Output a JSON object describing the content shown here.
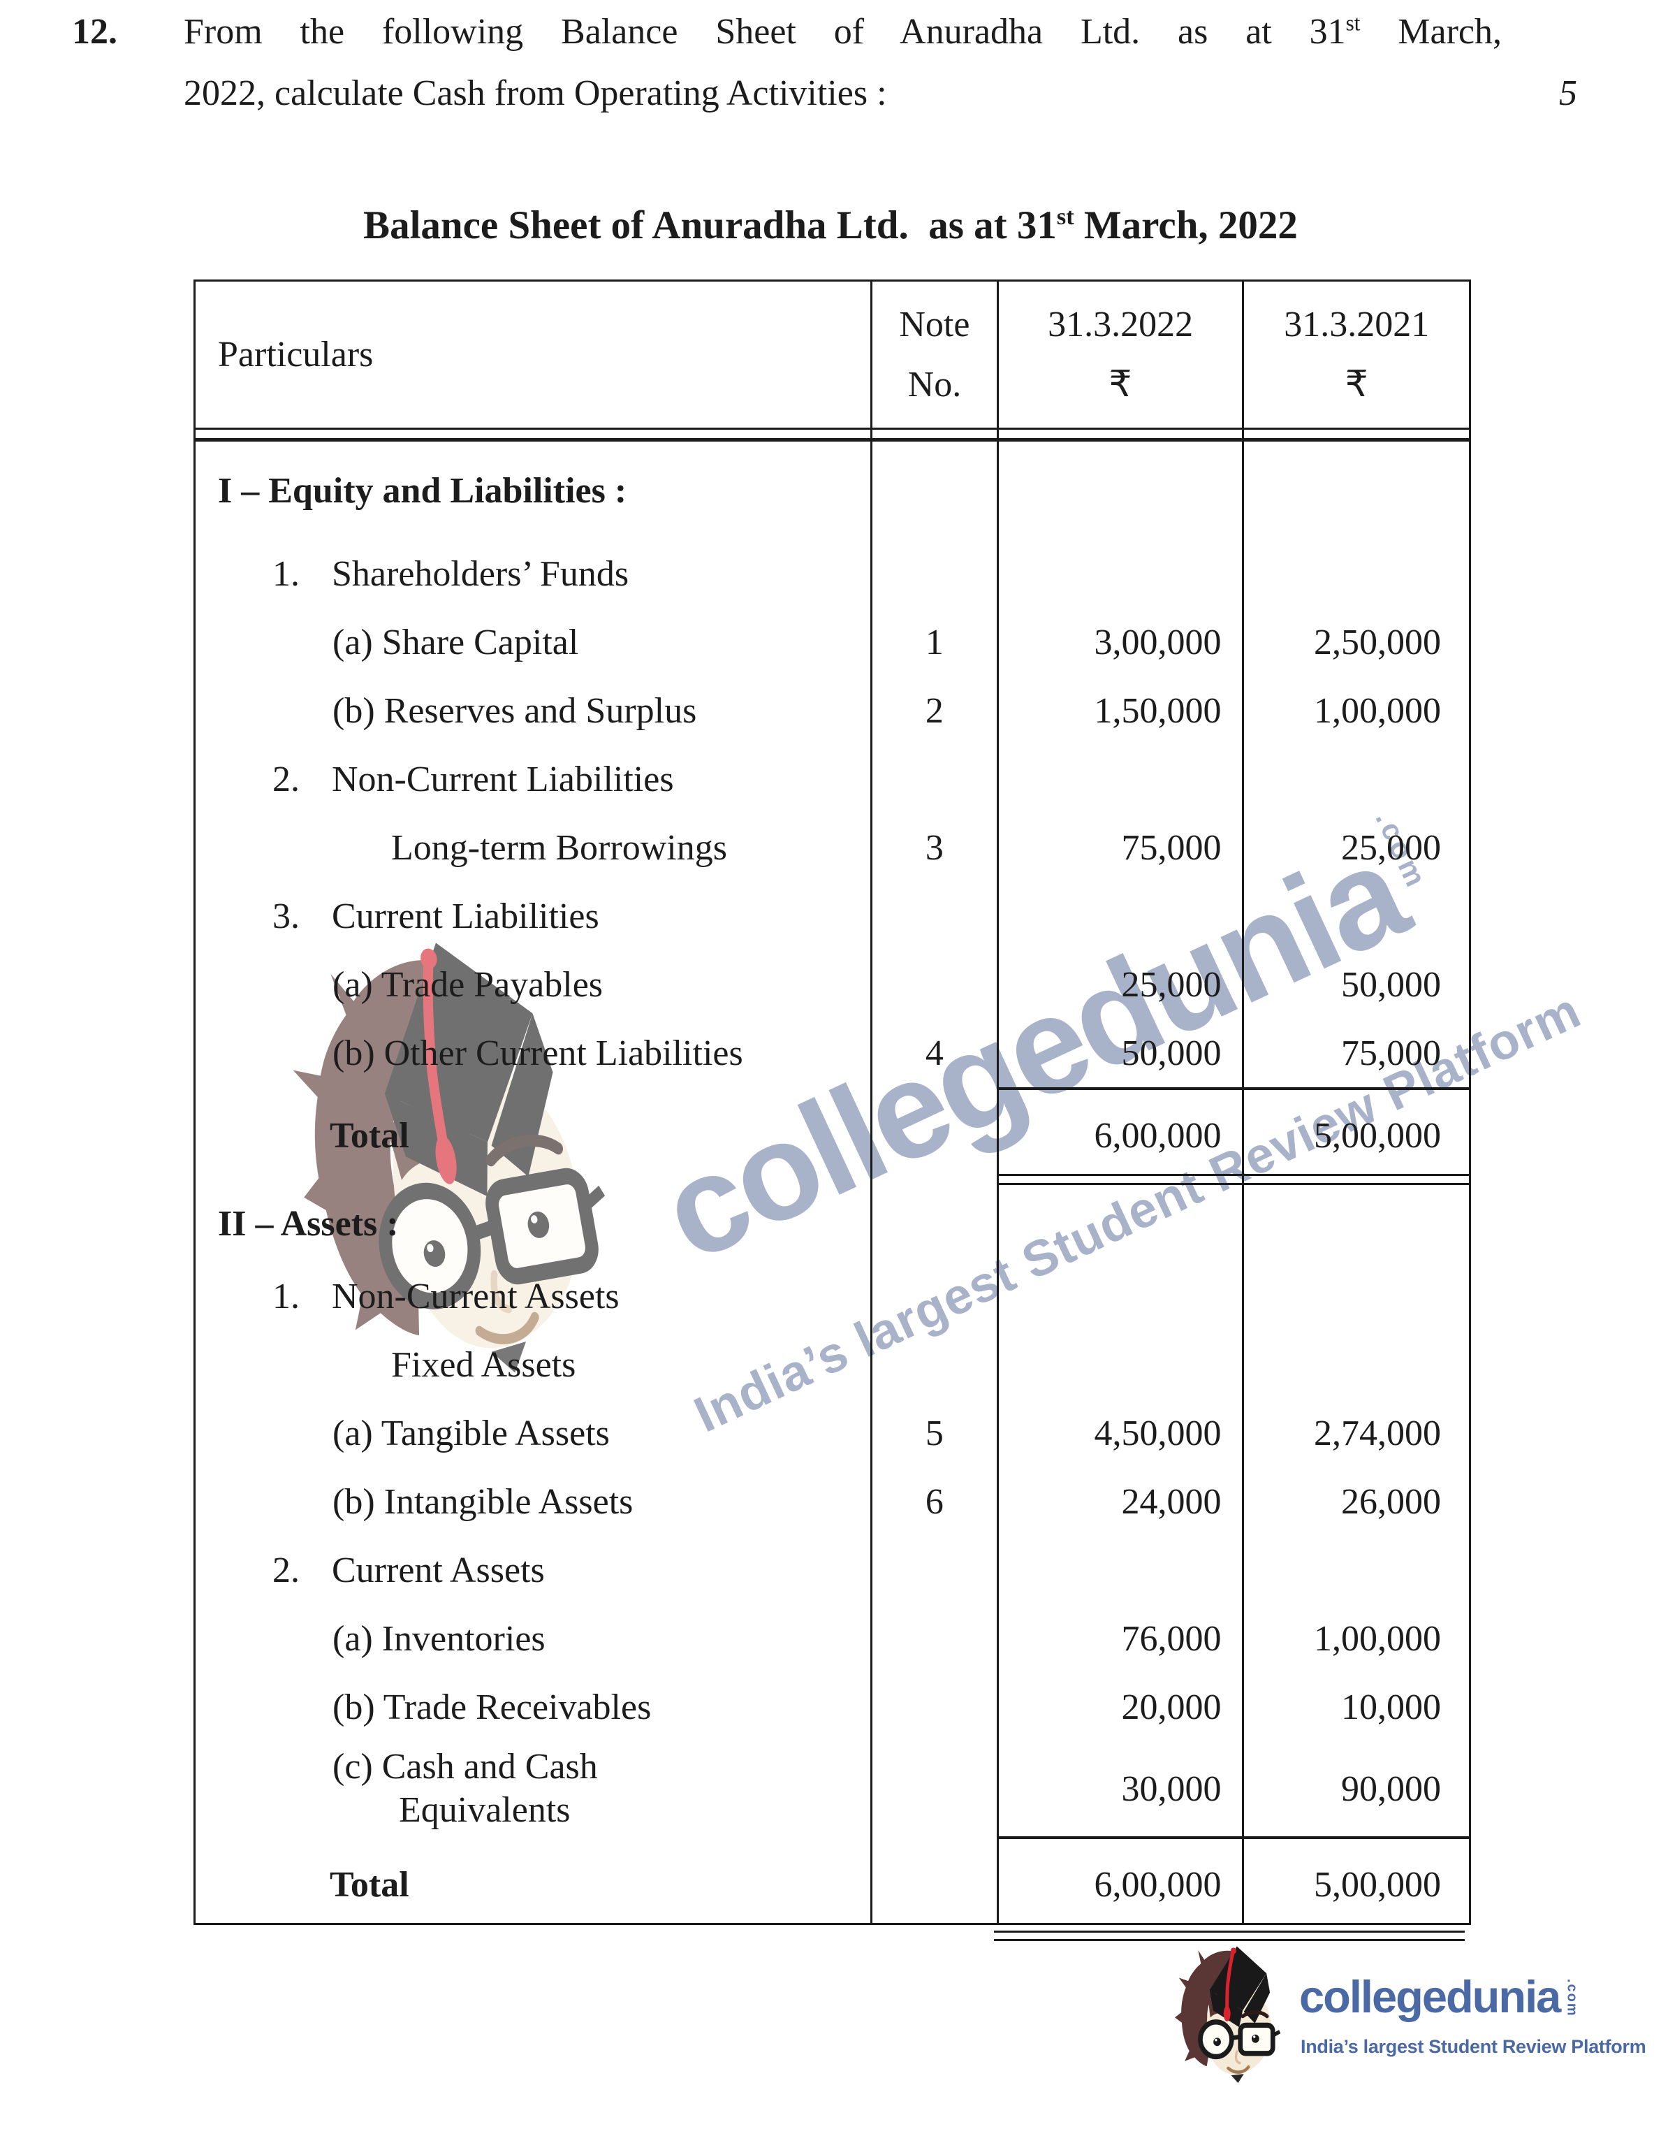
{
  "question": {
    "number": "12.",
    "line1_a": "From the following Balance Sheet of Anuradha Ltd. as at 31",
    "line1_sup": "st",
    "line1_b": " March,",
    "line2": "2022, calculate Cash from Operating Activities :",
    "marks": "5"
  },
  "title": {
    "a": "Balance Sheet of Anuradha Ltd.  as at 31",
    "sup": "st",
    "b": " March, 2022"
  },
  "table": {
    "header": {
      "particulars": "Particulars",
      "note1": "Note",
      "note2": "No.",
      "y2022": "31.3.2022",
      "y2021": "31.3.2021",
      "cur": "₹"
    },
    "rows": [
      {
        "kind": "row",
        "style": "section",
        "p": "I – Equity and Liabilities :",
        "note": "",
        "a2022": "",
        "a2021": ""
      },
      {
        "kind": "row",
        "style": "numbered",
        "num": "1.",
        "p": "Shareholders’ Funds",
        "note": "",
        "a2022": "",
        "a2021": ""
      },
      {
        "kind": "row",
        "style": "lettered",
        "p": "(a) Share Capital",
        "note": "1",
        "a2022": "3,00,000",
        "a2021": "2,50,000"
      },
      {
        "kind": "row",
        "style": "lettered",
        "p": "(b) Reserves and Surplus",
        "note": "2",
        "a2022": "1,50,000",
        "a2021": "1,00,000"
      },
      {
        "kind": "row",
        "style": "numbered",
        "num": "2.",
        "p": "Non-Current Liabilities",
        "note": "",
        "a2022": "",
        "a2021": ""
      },
      {
        "kind": "row",
        "style": "sub",
        "p": "Long-term Borrowings",
        "note": "3",
        "a2022": "75,000",
        "a2021": "25,000"
      },
      {
        "kind": "row",
        "style": "numbered",
        "num": "3.",
        "p": "Current Liabilities",
        "note": "",
        "a2022": "",
        "a2021": ""
      },
      {
        "kind": "row",
        "style": "lettered",
        "p": "(a) Trade Payables",
        "note": "",
        "a2022": "25,000",
        "a2021": "50,000"
      },
      {
        "kind": "row",
        "style": "lettered",
        "p": "(b) Other Current Liabilities",
        "note": "4",
        "a2022": "50,000",
        "a2021": "75,000"
      },
      {
        "kind": "rule",
        "variant": "single"
      },
      {
        "kind": "row",
        "style": "total",
        "p": "Total",
        "note": "",
        "a2022": "6,00,000",
        "a2021": "5,00,000"
      },
      {
        "kind": "rule",
        "variant": "double"
      },
      {
        "kind": "row",
        "style": "section",
        "p": "II – Assets :",
        "note": "",
        "a2022": "",
        "a2021": ""
      },
      {
        "kind": "row",
        "style": "numbered",
        "num": "1.",
        "p": "Non-Current Assets",
        "note": "",
        "a2022": "",
        "a2021": ""
      },
      {
        "kind": "row",
        "style": "sub",
        "p": "Fixed Assets",
        "note": "",
        "a2022": "",
        "a2021": ""
      },
      {
        "kind": "row",
        "style": "lettered",
        "p": "(a) Tangible Assets",
        "note": "5",
        "a2022": "4,50,000",
        "a2021": "2,74,000"
      },
      {
        "kind": "row",
        "style": "lettered",
        "p": "(b) Intangible Assets",
        "note": "6",
        "a2022": "24,000",
        "a2021": "26,000"
      },
      {
        "kind": "row",
        "style": "numbered",
        "num": "2.",
        "p": "Current Assets",
        "note": "",
        "a2022": "",
        "a2021": ""
      },
      {
        "kind": "row",
        "style": "lettered",
        "p": "(a) Inventories",
        "note": "",
        "a2022": "76,000",
        "a2021": "1,00,000"
      },
      {
        "kind": "row",
        "style": "lettered",
        "p": "(b) Trade Receivables",
        "note": "",
        "a2022": "20,000",
        "a2021": "10,000"
      },
      {
        "kind": "row",
        "style": "lettered2",
        "p": "(c) Cash and Cash",
        "p2": "Equivalents",
        "note": "",
        "a2022": "30,000",
        "a2021": "90,000"
      },
      {
        "kind": "rule",
        "variant": "single"
      },
      {
        "kind": "row",
        "style": "total",
        "p": "Total",
        "note": "",
        "a2022": "6,00,000",
        "a2021": "5,00,000"
      }
    ]
  },
  "watermark": {
    "brand": "collegedunia",
    "dotcom": ".com",
    "tagline": "India’s largest Student Review Platform"
  },
  "logo": {
    "brand": "collegedunia",
    "dotcom": ".com",
    "tagline": "India’s largest Student Review Platform"
  },
  "theme": {
    "logo_blue": "#4b6aa5",
    "watermark_blue": "#a8b2c9",
    "text": "#1c1c1c",
    "line": "#1b1b1b",
    "hair": "#5a3634",
    "cap": "#191919",
    "tassel": "#d8232e",
    "face": "#f5e9d7",
    "glasses": "#1b1b1b"
  }
}
